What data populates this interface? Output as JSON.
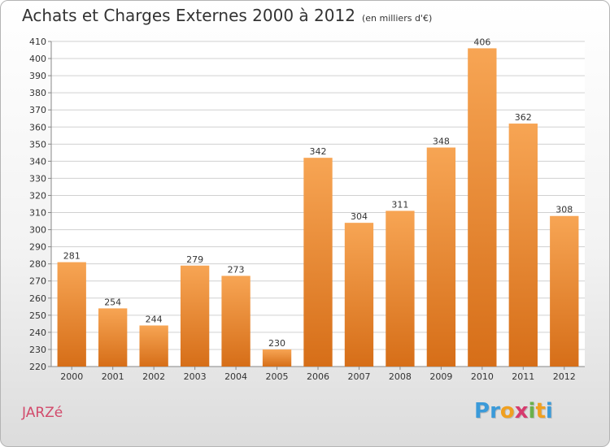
{
  "title": "Achats et Charges Externes 2000 à 2012",
  "unit": "(en milliers d'€)",
  "commune": "JARZé",
  "brand": {
    "letters": [
      "P",
      "r",
      "o",
      "x",
      "i",
      "t",
      "i"
    ],
    "colors": [
      "#3a9ad9",
      "#3a9ad9",
      "#f0a020",
      "#d63b6e",
      "#6ab04c",
      "#f0a020",
      "#3a9ad9"
    ]
  },
  "colors": {
    "bar_top": "#f7a554",
    "bar_bottom": "#d66e18",
    "grid": "#d0d0d0",
    "text": "#333333"
  },
  "chart_data": {
    "type": "bar",
    "title": "Achats et Charges Externes 2000 à 2012",
    "xlabel": "",
    "ylabel": "",
    "categories": [
      "2000",
      "2001",
      "2002",
      "2003",
      "2004",
      "2005",
      "2006",
      "2007",
      "2008",
      "2009",
      "2010",
      "2011",
      "2012"
    ],
    "values": [
      281,
      254,
      244,
      279,
      273,
      230,
      342,
      304,
      311,
      348,
      406,
      362,
      308
    ],
    "ylim": [
      220,
      410
    ],
    "ytick_step": 10,
    "grid": true
  }
}
